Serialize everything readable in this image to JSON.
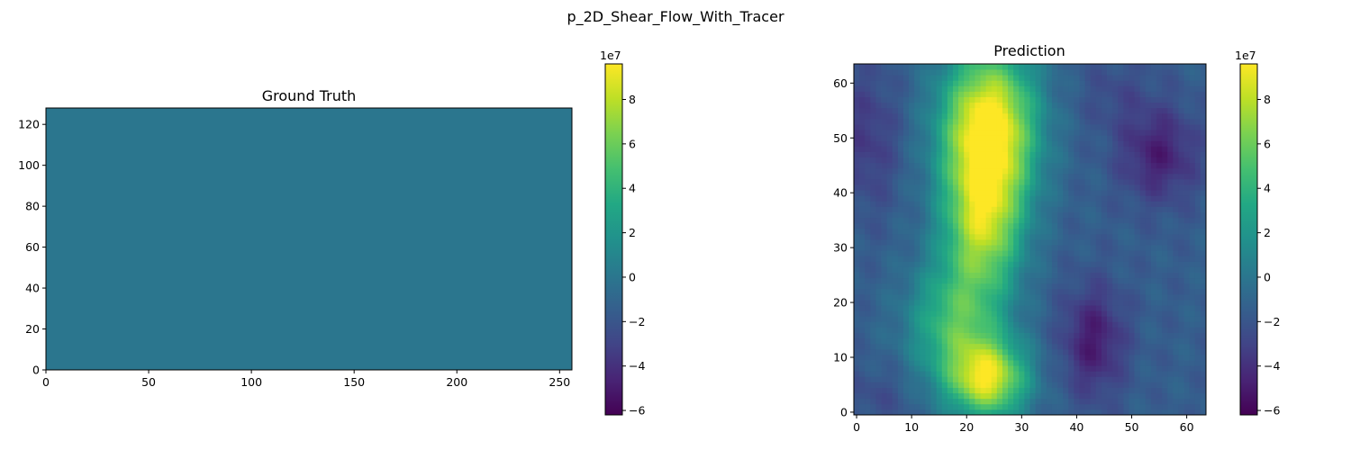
{
  "figure": {
    "title": "p_2D_Shear_Flow_With_Tracer"
  },
  "colormap": "viridis",
  "chart_data": [
    {
      "type": "heatmap",
      "title": "Ground Truth",
      "xlim": [
        0,
        256
      ],
      "ylim": [
        0,
        128
      ],
      "xticks": [
        0,
        50,
        100,
        150,
        200,
        250
      ],
      "yticks": [
        0,
        20,
        40,
        60,
        80,
        100,
        120
      ],
      "uniform_value": 0,
      "colorbar": {
        "range": [
          -6.2,
          9.6
        ],
        "ticks": [
          -6,
          -4,
          -2,
          0,
          2,
          4,
          6,
          8
        ],
        "offset_label": "1e7"
      }
    },
    {
      "type": "heatmap",
      "title": "Prediction",
      "xlim": [
        0,
        64
      ],
      "ylim": [
        0,
        64
      ],
      "xticks": [
        0,
        10,
        20,
        30,
        40,
        50,
        60
      ],
      "yticks": [
        0,
        10,
        20,
        30,
        40,
        50,
        60
      ],
      "grid_size": [
        64,
        64
      ],
      "field": {
        "background": -1.5,
        "features": [
          {
            "x": 24,
            "y": 52,
            "value": 10.5,
            "sx": 6,
            "sy": 10
          },
          {
            "x": 23,
            "y": 34,
            "value": 6.5,
            "sx": 5,
            "sy": 9
          },
          {
            "x": 24,
            "y": 6,
            "value": 8,
            "sx": 5,
            "sy": 5
          },
          {
            "x": 18,
            "y": 16,
            "value": 4.5,
            "sx": 6,
            "sy": 8
          },
          {
            "x": 55,
            "y": 47,
            "value": -4.8,
            "sx": 5,
            "sy": 6
          },
          {
            "x": 43,
            "y": 13,
            "value": -5,
            "sx": 4,
            "sy": 7
          },
          {
            "x": 2,
            "y": 50,
            "value": -3.5,
            "sx": 4,
            "sy": 9
          },
          {
            "x": 4,
            "y": 3,
            "value": -2.5,
            "sx": 5,
            "sy": 4
          },
          {
            "x": 47,
            "y": 58,
            "value": -2.5,
            "sx": 5,
            "sy": 5
          }
        ]
      },
      "colorbar": {
        "range": [
          -6.2,
          9.6
        ],
        "ticks": [
          -6,
          -4,
          -2,
          0,
          2,
          4,
          6,
          8
        ],
        "offset_label": "1e7"
      }
    }
  ]
}
